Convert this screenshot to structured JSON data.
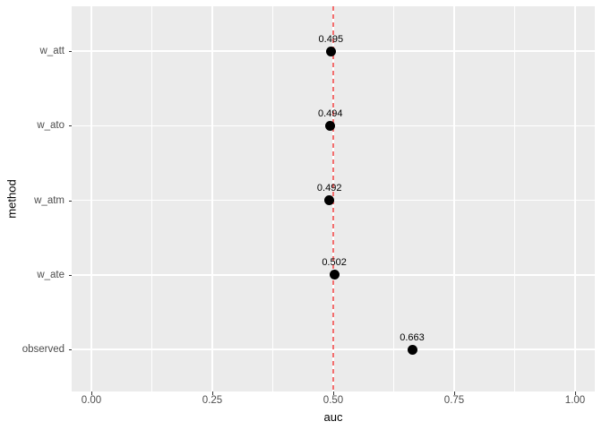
{
  "chart_data": {
    "type": "scatter",
    "orientation": "horizontal",
    "title": "",
    "xlabel": "auc",
    "ylabel": "method",
    "categories_top_to_bottom": [
      "w_att",
      "w_ato",
      "w_atm",
      "w_ate",
      "observed"
    ],
    "series": [
      {
        "name": "auc_by_method",
        "points": [
          {
            "category": "w_att",
            "value": 0.495,
            "label": "0.495"
          },
          {
            "category": "w_ato",
            "value": 0.494,
            "label": "0.494"
          },
          {
            "category": "w_atm",
            "value": 0.492,
            "label": "0.492"
          },
          {
            "category": "w_ate",
            "value": 0.502,
            "label": "0.502"
          },
          {
            "category": "observed",
            "value": 0.663,
            "label": "0.663"
          }
        ]
      }
    ],
    "x_axis": {
      "ticks": [
        0.0,
        0.25,
        0.5,
        0.75,
        1.0
      ],
      "tick_labels": [
        "0.00",
        "0.25",
        "0.50",
        "0.75",
        "1.00"
      ],
      "minor_ticks": [
        0.125,
        0.375,
        0.625,
        0.875
      ],
      "range_shown": [
        -0.041,
        1.041
      ]
    },
    "reference_line": {
      "x": 0.5,
      "style": "dashed",
      "color": "#F36E6E"
    },
    "grid": true,
    "legend": false,
    "colors": {
      "panel_background": "#EBEBEB",
      "gridline": "#FFFFFF",
      "point": "#000000",
      "tick_text": "#4D4D4D",
      "title_text": "#000000"
    }
  }
}
